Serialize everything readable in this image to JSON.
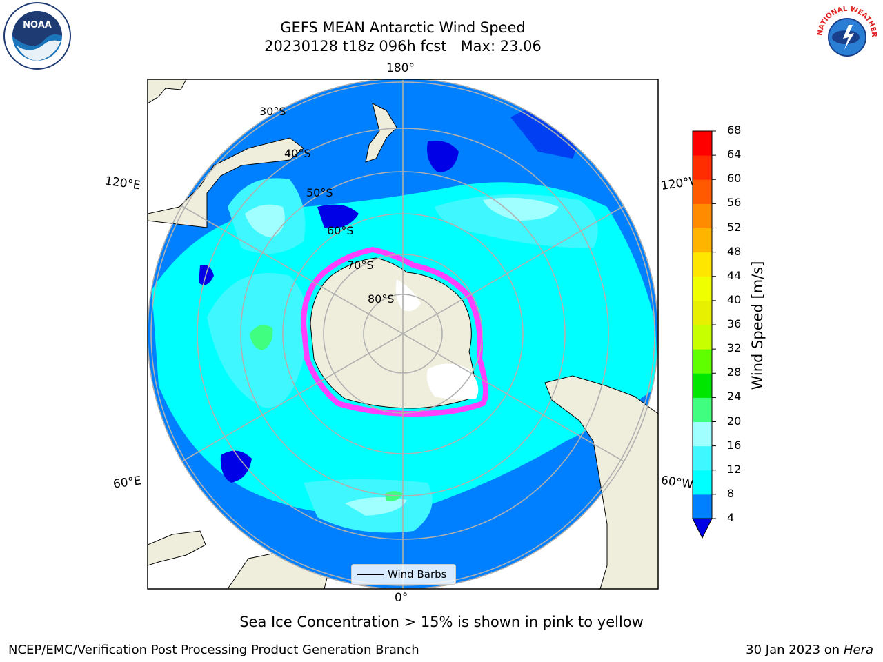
{
  "header": {
    "title_line1": "GEFS MEAN Antarctic Wind Speed",
    "title_line2": "20230128 t18z 096h fcst   Max: 23.06"
  },
  "logos": {
    "noara_text": "NOAA",
    "nws_text": "NATIONAL WEATHER SERVICE"
  },
  "map": {
    "lon_labels": [
      "180°",
      "120°E",
      "120°W",
      "60°E",
      "60°W",
      "0°"
    ],
    "lat_labels": [
      "30°S",
      "40°S",
      "50°S",
      "60°S",
      "70°S",
      "80°S"
    ],
    "legend_label": "Wind Barbs"
  },
  "colorbar": {
    "title": "Wind Speed [m/s]",
    "ticks": [
      "68",
      "64",
      "60",
      "56",
      "52",
      "48",
      "44",
      "40",
      "36",
      "32",
      "28",
      "24",
      "20",
      "16",
      "12",
      "8",
      "4"
    ],
    "colors": [
      "#0000e6",
      "#0080ff",
      "#00ffff",
      "#3ff8ff",
      "#a0ffff",
      "#40ff80",
      "#00e600",
      "#60ff00",
      "#c8ff00",
      "#e6f000",
      "#f0ff00",
      "#ffe600",
      "#ffb400",
      "#ff8c00",
      "#ff5a00",
      "#ff2d00",
      "#ff0000"
    ]
  },
  "caption": "Sea Ice Concentration > 15% is shown in pink to yellow",
  "footer": {
    "left": "NCEP/EMC/Verification Post Processing Product Generation Branch",
    "right_prefix": "30 Jan 2023 on ",
    "right_host": "Hera"
  }
}
